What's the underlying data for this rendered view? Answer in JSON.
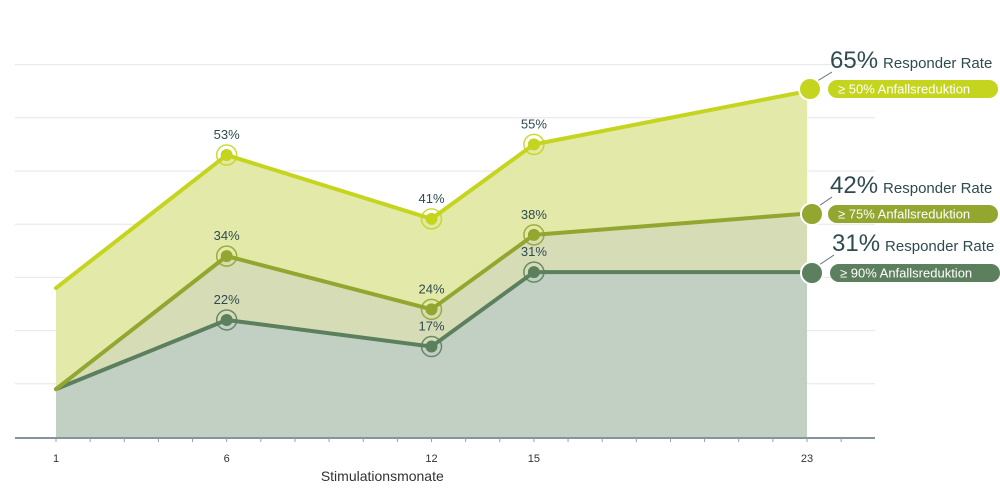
{
  "chart_data": {
    "type": "area",
    "xlabel": "Stimulationsmonate",
    "x": [
      1,
      6,
      12,
      15,
      23
    ],
    "x_tick_labels": [
      "1",
      "6",
      "12",
      "15",
      "23"
    ],
    "grid": true,
    "series": [
      {
        "key": "s50",
        "name": "≥ 50% Anfallsreduktion",
        "values": [
          28,
          53,
          41,
          55,
          65
        ],
        "labels": [
          "",
          "53%",
          "41%",
          "55%",
          ""
        ],
        "color": "#c5d51f",
        "fill": "#e3e9a8",
        "summary_value": "65%",
        "summary_text": "Responder Rate"
      },
      {
        "key": "s75",
        "name": "≥ 75% Anfallsreduktion",
        "values": [
          9,
          34,
          24,
          38,
          42
        ],
        "labels": [
          "",
          "34%",
          "24%",
          "38%",
          ""
        ],
        "color": "#92a630",
        "fill": "#d6ddb6",
        "summary_value": "42%",
        "summary_text": "Responder Rate"
      },
      {
        "key": "s90",
        "name": "≥ 90% Anfallsreduktion",
        "values": [
          9,
          22,
          17,
          31,
          31
        ],
        "labels": [
          "",
          "22%",
          "17%",
          "31%",
          ""
        ],
        "color": "#5c7f5e",
        "fill": "#c1d0c3",
        "summary_value": "31%",
        "summary_text": "Responder Rate"
      }
    ]
  }
}
